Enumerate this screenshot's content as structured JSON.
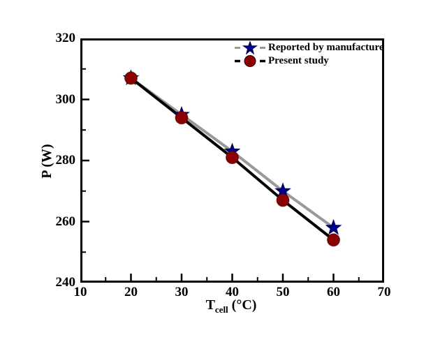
{
  "figure": {
    "background": "#ffffff",
    "frame_color": "#000000"
  },
  "axes": {
    "ylabel": "P (W)",
    "xlabel_main": "T",
    "xlabel_sub": "cell",
    "xlabel_unit": " (°C)"
  },
  "legend": {
    "items": [
      {
        "label": "Reported by manufacture",
        "line_color": "#999999",
        "marker": "star",
        "marker_color": "#00008B"
      },
      {
        "label": "Present study",
        "line_color": "#000000",
        "marker": "circle",
        "marker_color": "#8B0000"
      }
    ]
  },
  "chart_data": {
    "type": "line",
    "title": "",
    "xlabel": "T_cell (°C)",
    "ylabel": "P (W)",
    "xlim": [
      10,
      70
    ],
    "ylim": [
      240,
      320
    ],
    "xticks": [
      10,
      20,
      30,
      40,
      50,
      60,
      70
    ],
    "yticks": [
      240,
      260,
      280,
      300,
      320
    ],
    "x_minor_step": 5,
    "y_minor_step": 10,
    "grid": false,
    "legend_position": "top-right",
    "x": [
      20,
      30,
      40,
      50,
      60
    ],
    "series": [
      {
        "name": "Reported by manufacture",
        "values": [
          307,
          295,
          283,
          270,
          258
        ],
        "line_color": "#999999",
        "line_style": "solid",
        "marker": "star",
        "marker_color": "#00008B"
      },
      {
        "name": "Present study",
        "values": [
          307,
          294,
          281,
          267,
          254
        ],
        "line_color": "#000000",
        "line_style": "solid",
        "marker": "circle",
        "marker_color": "#8B0000"
      }
    ]
  }
}
